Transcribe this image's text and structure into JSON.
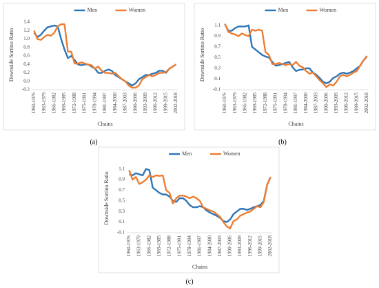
{
  "chart_data": [
    {
      "type": "line",
      "panel_label": "(a)",
      "x_label": "Chains",
      "y_label": "Downside Sortino Ratio",
      "categories": [
        "1960-1976",
        null,
        null,
        "1963-1979",
        null,
        null,
        "1966-1982",
        null,
        null,
        "1969-1985",
        null,
        null,
        "1972-1988",
        null,
        null,
        "1975-1991",
        null,
        null,
        "1978-1994",
        null,
        null,
        "1981-1997",
        null,
        null,
        "1984-2000",
        null,
        null,
        "1987-2003",
        null,
        null,
        "1990-2006",
        null,
        null,
        "1993-2009",
        null,
        null,
        "1996-2012",
        null,
        null,
        "1999-2015",
        null,
        null,
        "2002-2018"
      ],
      "series": [
        {
          "name": "Men",
          "color": "#2e75b6",
          "values": [
            1.15,
            1.05,
            1.1,
            1.2,
            1.28,
            1.3,
            1.32,
            1.3,
            1.0,
            0.75,
            0.55,
            0.6,
            0.5,
            0.4,
            0.38,
            0.4,
            0.4,
            0.35,
            0.3,
            0.2,
            0.2,
            0.25,
            0.28,
            0.25,
            0.15,
            0.1,
            0.05,
            0,
            -0.05,
            -0.1,
            -0.05,
            0.05,
            0.1,
            0.15,
            0.15,
            0.18,
            0.2,
            0.25,
            0.25,
            0.2,
            0.3,
            0.35,
            0.4
          ]
        },
        {
          "name": "Women",
          "color": "#ed7d31",
          "values": [
            1.2,
            1.0,
            0.98,
            1.05,
            1.1,
            1.08,
            1.15,
            1.3,
            1.35,
            1.35,
            0.7,
            0.7,
            0.42,
            0.42,
            0.45,
            0.42,
            0.4,
            0.38,
            0.3,
            0.35,
            0.25,
            0.2,
            0.2,
            0.18,
            0.2,
            0.12,
            0.05,
            0,
            -0.1,
            -0.15,
            -0.15,
            -0.1,
            0.05,
            0.1,
            0.15,
            0.12,
            0.15,
            0.2,
            0.2,
            0.22,
            0.3,
            0.35,
            0.4
          ]
        }
      ],
      "ylim": [
        -0.2,
        1.45
      ],
      "yticks": [
        -0.2,
        {
          "value": 0,
          "label": "0.0"
        },
        0.2,
        0.4,
        0.6,
        0.8,
        {
          "value": 1,
          "label": "1.0"
        },
        1.2,
        1.4
      ],
      "grid": false,
      "legend": "top"
    },
    {
      "type": "line",
      "panel_label": "(b)",
      "x_label": "Chains",
      "y_label": "Downside Sortino Ratio",
      "categories": [
        "1960-1976",
        null,
        null,
        "1963-1979",
        null,
        null,
        "1966-1982",
        null,
        null,
        "1969-1985",
        null,
        null,
        "1972-1988",
        null,
        null,
        "1975-1991",
        null,
        null,
        "1978-1994",
        null,
        null,
        "1981-1997",
        null,
        null,
        "1984-2000",
        null,
        null,
        "1987-2003",
        null,
        null,
        "1990-2006",
        null,
        null,
        "1993-2009",
        null,
        null,
        "1996-2012",
        null,
        null,
        "1999-2015",
        null,
        null,
        "2002-2018"
      ],
      "series": [
        {
          "name": "Men",
          "color": "#2e75b6",
          "values": [
            1.12,
            1.0,
            1.0,
            1.05,
            1.08,
            1.08,
            1.08,
            1.1,
            0.7,
            0.65,
            0.6,
            0.55,
            0.52,
            0.5,
            0.42,
            0.35,
            0.36,
            0.38,
            0.4,
            0.42,
            0.32,
            0.25,
            0.27,
            0.28,
            0.3,
            0.3,
            0.22,
            0.18,
            0.12,
            0.05,
            0.02,
            0.05,
            0.12,
            0.15,
            0.2,
            0.22,
            0.2,
            0.22,
            0.25,
            0.3,
            0.35,
            0.45,
            0.52
          ]
        },
        {
          "name": "Women",
          "color": "#ed7d31",
          "values": [
            1.13,
            0.98,
            0.95,
            0.93,
            0.9,
            0.95,
            0.92,
            0.9,
            1.02,
            1.0,
            1.02,
            1.0,
            0.6,
            0.55,
            0.38,
            0.38,
            0.4,
            0.38,
            0.36,
            0.38,
            0.36,
            0.42,
            0.35,
            0.32,
            0.25,
            0.2,
            0.22,
            0.15,
            0.08,
            0.02,
            -0.05,
            0,
            -0.02,
            0.05,
            0.15,
            0.18,
            0.15,
            0.18,
            0.22,
            0.25,
            0.35,
            0.45,
            0.53
          ]
        }
      ],
      "ylim": [
        -0.1,
        1.2
      ],
      "yticks": [
        -0.1,
        0.1,
        0.3,
        0.5,
        0.7,
        0.9,
        1.1
      ],
      "grid": false,
      "legend": "top"
    },
    {
      "type": "line",
      "panel_label": "(c)",
      "x_label": "Chains",
      "y_label": "Downside Sortino Ratio",
      "categories": [
        "1960-1976",
        null,
        null,
        "1963-1979",
        null,
        null,
        "1966-1982",
        null,
        null,
        "1969-1985",
        null,
        null,
        "1972-1988",
        null,
        null,
        "1975-1991",
        null,
        null,
        "1978-1994",
        null,
        null,
        "1981-1997",
        null,
        null,
        "1984-2000",
        null,
        null,
        "1987-2003",
        null,
        null,
        "1990-2006",
        null,
        null,
        "1993-2009",
        null,
        null,
        "1996-2012",
        null,
        null,
        "1999-2015",
        null,
        null,
        "2002-2018"
      ],
      "series": [
        {
          "name": "Men",
          "color": "#2e75b6",
          "values": [
            1.0,
            0.98,
            1.02,
            1.0,
            0.98,
            1.1,
            1.08,
            0.75,
            0.7,
            0.65,
            0.62,
            0.62,
            0.58,
            0.5,
            0.48,
            0.55,
            0.55,
            0.5,
            0.42,
            0.38,
            0.38,
            0.4,
            0.38,
            0.32,
            0.28,
            0.25,
            0.22,
            0.18,
            0.12,
            0.1,
            0.15,
            0.25,
            0.3,
            0.35,
            0.35,
            0.33,
            0.35,
            0.38,
            0.4,
            0.42,
            0.5,
            0.8,
            0.95
          ]
        },
        {
          "name": "Women",
          "color": "#ed7d31",
          "values": [
            1.08,
            0.9,
            0.95,
            0.82,
            0.85,
            0.9,
            0.98,
            0.95,
            0.98,
            0.97,
            0.98,
            0.7,
            0.65,
            0.45,
            0.55,
            0.6,
            0.6,
            0.58,
            0.55,
            0.58,
            0.55,
            0.5,
            0.38,
            0.35,
            0.32,
            0.3,
            0.25,
            0.2,
            0.1,
            0.02,
            -0.02,
            0.12,
            0.15,
            0.22,
            0.25,
            0.28,
            0.3,
            0.35,
            0.4,
            0.38,
            0.48,
            0.8,
            0.95
          ]
        }
      ],
      "ylim": [
        -0.1,
        1.2
      ],
      "yticks": [
        -0.1,
        0.1,
        0.3,
        0.5,
        0.7,
        0.9,
        1.1
      ],
      "grid": false,
      "legend": "top"
    }
  ]
}
